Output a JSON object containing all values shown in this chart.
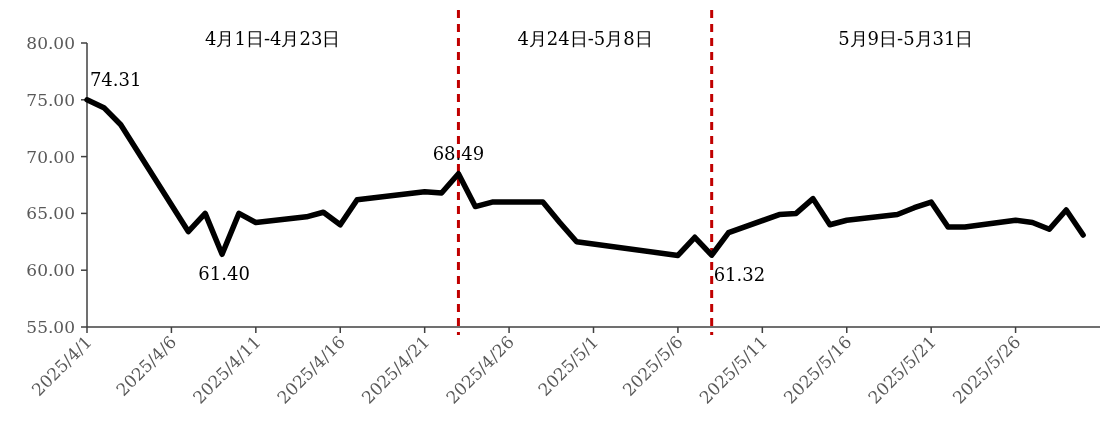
{
  "chart_data": {
    "type": "line",
    "x": [
      "2025-04-01",
      "2025-04-02",
      "2025-04-03",
      "2025-04-07",
      "2025-04-08",
      "2025-04-09",
      "2025-04-10",
      "2025-04-11",
      "2025-04-14",
      "2025-04-15",
      "2025-04-16",
      "2025-04-17",
      "2025-04-21",
      "2025-04-22",
      "2025-04-23",
      "2025-04-24",
      "2025-04-25",
      "2025-04-28",
      "2025-04-29",
      "2025-04-30",
      "2025-05-06",
      "2025-05-07",
      "2025-05-08",
      "2025-05-09",
      "2025-05-12",
      "2025-05-13",
      "2025-05-14",
      "2025-05-15",
      "2025-05-16",
      "2025-05-19",
      "2025-05-20",
      "2025-05-21",
      "2025-05-22",
      "2025-05-23",
      "2025-05-26",
      "2025-05-27",
      "2025-05-28",
      "2025-05-29",
      "2025-05-30"
    ],
    "series": [
      {
        "color": "#000000",
        "values": [
          75.0,
          74.31,
          72.8,
          63.4,
          65.0,
          61.4,
          65.0,
          64.2,
          64.7,
          65.1,
          64.0,
          66.2,
          66.9,
          66.8,
          68.49,
          65.6,
          66.0,
          66.0,
          64.2,
          62.5,
          61.3,
          62.9,
          61.32,
          63.3,
          64.9,
          65.0,
          66.3,
          64.0,
          64.4,
          64.9,
          65.5,
          66.0,
          63.8,
          63.8,
          64.4,
          64.2,
          63.6,
          65.3,
          63.1
        ],
        "value_labels": [
          null,
          "74.31",
          null,
          null,
          null,
          "61.40",
          null,
          null,
          null,
          null,
          null,
          null,
          null,
          null,
          "68.49",
          null,
          null,
          null,
          null,
          null,
          null,
          null,
          "61.32",
          null,
          null,
          null,
          null,
          null,
          null,
          null,
          null,
          null,
          null,
          null,
          null,
          null,
          null,
          null,
          null
        ]
      }
    ],
    "xlim": [
      "2025-04-01",
      "2025-05-31"
    ],
    "xticks": [
      {
        "value": "2025-04-01",
        "label": "2025/4/1"
      },
      {
        "value": "2025-04-06",
        "label": "2025/4/6"
      },
      {
        "value": "2025-04-11",
        "label": "2025/4/11"
      },
      {
        "value": "2025-04-16",
        "label": "2025/4/16"
      },
      {
        "value": "2025-04-21",
        "label": "2025/4/21"
      },
      {
        "value": "2025-04-26",
        "label": "2025/4/26"
      },
      {
        "value": "2025-05-01",
        "label": "2025/5/1"
      },
      {
        "value": "2025-05-06",
        "label": "2025/5/6"
      },
      {
        "value": "2025-05-11",
        "label": "2025/5/11"
      },
      {
        "value": "2025-05-16",
        "label": "2025/5/16"
      },
      {
        "value": "2025-05-21",
        "label": "2025/5/21"
      },
      {
        "value": "2025-05-26",
        "label": "2025/5/26"
      }
    ],
    "ylim": [
      55,
      80
    ],
    "yticks": [
      {
        "value": 55,
        "label": "55.00"
      },
      {
        "value": 60,
        "label": "60.00"
      },
      {
        "value": 65,
        "label": "65.00"
      },
      {
        "value": 70,
        "label": "70.00"
      },
      {
        "value": 75,
        "label": "75.00"
      },
      {
        "value": 80,
        "label": "80.00"
      }
    ],
    "ref_lines": [
      {
        "axis": "x",
        "value": "2025-04-23",
        "color": "#c00000",
        "line_style": "dashed"
      },
      {
        "axis": "x",
        "value": "2025-05-08",
        "color": "#c00000",
        "line_style": "dashed"
      }
    ],
    "annotations": [
      "4月1日-4月23日",
      "4月24日-5月8日",
      "5月9日-5月31日"
    ],
    "grid": false,
    "marker": "none",
    "line_style": "solid"
  }
}
